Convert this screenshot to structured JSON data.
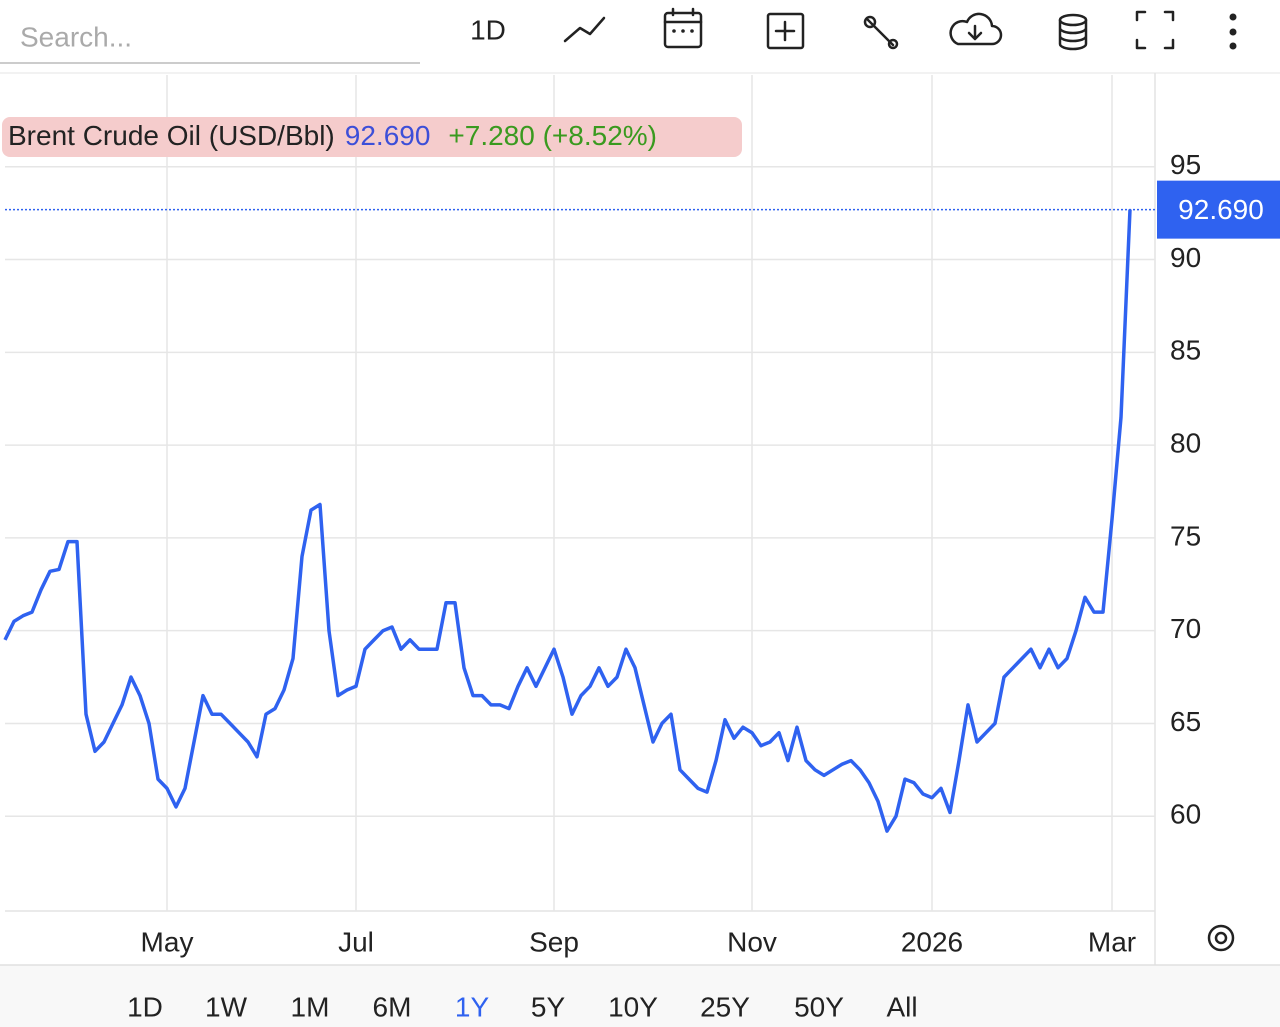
{
  "toolbar": {
    "search_placeholder": "Search...",
    "interval": "1D"
  },
  "header": {
    "name": "Brent Crude Oil (USD/Bbl)",
    "price": "92.690",
    "change": "+7.280 (+8.52%)"
  },
  "ranges": {
    "items": [
      "1D",
      "1W",
      "1M",
      "6M",
      "1Y",
      "5Y",
      "10Y",
      "25Y",
      "50Y",
      "All"
    ],
    "selected": "1Y"
  },
  "chart_data": {
    "type": "line",
    "categories": [
      null,
      null,
      null,
      null,
      null,
      null,
      null,
      null,
      null,
      null,
      null,
      null,
      null,
      null,
      null,
      null,
      null,
      null,
      "May",
      null,
      null,
      null,
      null,
      null,
      null,
      null,
      null,
      null,
      null,
      null,
      null,
      null,
      null,
      null,
      null,
      null,
      null,
      null,
      null,
      "Jul",
      null,
      null,
      null,
      null,
      null,
      null,
      null,
      null,
      null,
      null,
      null,
      null,
      null,
      null,
      null,
      null,
      null,
      null,
      null,
      null,
      null,
      "Sep",
      null,
      null,
      null,
      null,
      null,
      null,
      null,
      null,
      null,
      null,
      null,
      null,
      null,
      null,
      null,
      null,
      null,
      null,
      null,
      null,
      null,
      "Nov",
      null,
      null,
      null,
      null,
      null,
      null,
      null,
      null,
      null,
      null,
      null,
      null,
      null,
      null,
      null,
      null,
      null,
      null,
      null,
      "2026",
      null,
      null,
      null,
      null,
      null,
      null,
      null,
      null,
      null,
      null,
      null,
      null,
      null,
      null,
      null,
      null,
      null,
      null,
      null,
      "Mar",
      null,
      null
    ],
    "series": [
      {
        "name": "Brent Crude Oil (USD/Bbl)",
        "color": "#2f62f0",
        "values": [
          69.5,
          70.5,
          70.8,
          71,
          72.2,
          73.2,
          73.3,
          74.8,
          74.8,
          65.5,
          63.5,
          64,
          65,
          66,
          67.5,
          66.5,
          65,
          62,
          61.5,
          60.5,
          61.5,
          64,
          66.5,
          65.5,
          65.5,
          65,
          64.5,
          64,
          63.2,
          65.5,
          65.8,
          66.8,
          68.5,
          74,
          76.5,
          76.8,
          70,
          66.5,
          66.8,
          67,
          69,
          69.5,
          70,
          70.2,
          69,
          69.5,
          69,
          69,
          69,
          71.5,
          71.5,
          68,
          66.5,
          66.5,
          66,
          66,
          65.8,
          67,
          68,
          67,
          68,
          69,
          67.5,
          65.5,
          66.5,
          67,
          68,
          67,
          67.5,
          69,
          68,
          66,
          64,
          65,
          65.5,
          62.5,
          62,
          61.5,
          61.3,
          63,
          65.2,
          64.2,
          64.8,
          64.5,
          63.8,
          64,
          64.5,
          63,
          64.8,
          63,
          62.5,
          62.2,
          62.5,
          62.8,
          63,
          62.5,
          61.8,
          60.8,
          59.2,
          60,
          62,
          61.8,
          61.2,
          61,
          61.5,
          60.2,
          63,
          66,
          64,
          64.5,
          65,
          67.5,
          68,
          68.5,
          69,
          68,
          69,
          68,
          68.5,
          70,
          71.8,
          71,
          71,
          76,
          81.5,
          92.69
        ],
        "value_labels": [
          null,
          null,
          null,
          null,
          null,
          null,
          null,
          null,
          null,
          null,
          null,
          null,
          null,
          null,
          null,
          null,
          null,
          null,
          null,
          null,
          null,
          null,
          null,
          null,
          null,
          null,
          null,
          null,
          null,
          null,
          null,
          null,
          null,
          null,
          null,
          null,
          null,
          null,
          null,
          null,
          null,
          null,
          null,
          null,
          null,
          null,
          null,
          null,
          null,
          null,
          null,
          null,
          null,
          null,
          null,
          null,
          null,
          null,
          null,
          null,
          null,
          null,
          null,
          null,
          null,
          null,
          null,
          null,
          null,
          null,
          null,
          null,
          null,
          null,
          null,
          null,
          null,
          null,
          null,
          null,
          null,
          null,
          null,
          null,
          null,
          null,
          null,
          null,
          null,
          null,
          null,
          null,
          null,
          null,
          null,
          null,
          null,
          null,
          null,
          null,
          null,
          null,
          null,
          null,
          null,
          null,
          null,
          null,
          null,
          null,
          null,
          null,
          null,
          null,
          null,
          null,
          null,
          null,
          null,
          null,
          null,
          null,
          null,
          null,
          null,
          "92.690"
        ]
      }
    ],
    "ylim": [
      55,
      100
    ],
    "yticks": [
      60,
      65,
      70,
      75,
      80,
      85,
      90,
      95
    ],
    "grid": true,
    "y_axis_side": "right"
  }
}
